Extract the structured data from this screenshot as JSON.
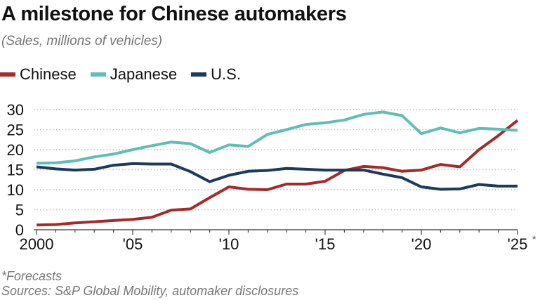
{
  "header": {
    "title": "A milestone for Chinese automakers",
    "subtitle": "(Sales, millions of vehicles)"
  },
  "footer": {
    "note": "*Forecasts",
    "sources": "Sources: S&P Global Mobility, automaker disclosures"
  },
  "chart_data": {
    "type": "line",
    "x": [
      2000,
      2001,
      2002,
      2003,
      2004,
      2005,
      2006,
      2007,
      2008,
      2009,
      2010,
      2011,
      2012,
      2013,
      2014,
      2015,
      2016,
      2017,
      2018,
      2019,
      2020,
      2021,
      2022,
      2023,
      2024,
      2025
    ],
    "x_ticks": [
      2000,
      2005,
      2010,
      2015,
      2020,
      2025
    ],
    "x_tick_labels": [
      "2000",
      "'05",
      "'10",
      "'15",
      "'20",
      "'25"
    ],
    "x_tick_suffix_2025": "*",
    "xlim": [
      2000,
      2025
    ],
    "ylim": [
      0,
      30
    ],
    "y_ticks": [
      0,
      5,
      10,
      15,
      20,
      25,
      30
    ],
    "grid": "horizontal dotted",
    "legend_position": "top-left",
    "series": [
      {
        "name": "Chinese",
        "color": "#a52a2a",
        "values": [
          1.2,
          1.3,
          1.7,
          2.0,
          2.3,
          2.6,
          3.1,
          4.9,
          5.2,
          8.0,
          10.7,
          10.1,
          10.0,
          11.4,
          11.4,
          12.1,
          14.8,
          15.8,
          15.5,
          14.6,
          14.9,
          16.3,
          15.7,
          20.0,
          23.5,
          27.3
        ]
      },
      {
        "name": "Japanese",
        "color": "#5fbeb6",
        "values": [
          16.6,
          16.7,
          17.2,
          18.2,
          18.9,
          20.0,
          21.0,
          21.9,
          21.5,
          19.3,
          21.2,
          20.8,
          23.8,
          25.0,
          26.3,
          26.7,
          27.4,
          28.8,
          29.4,
          28.5,
          24.0,
          25.4,
          24.2,
          25.3,
          25.1,
          24.8
        ]
      },
      {
        "name": "U.S.",
        "color": "#1b3a5c",
        "values": [
          15.7,
          15.2,
          14.9,
          15.1,
          16.1,
          16.5,
          16.4,
          16.4,
          14.5,
          12.0,
          13.6,
          14.6,
          14.8,
          15.3,
          15.1,
          14.9,
          14.9,
          14.9,
          13.9,
          13.0,
          10.7,
          10.1,
          10.2,
          11.3,
          10.9,
          10.9
        ]
      }
    ]
  }
}
